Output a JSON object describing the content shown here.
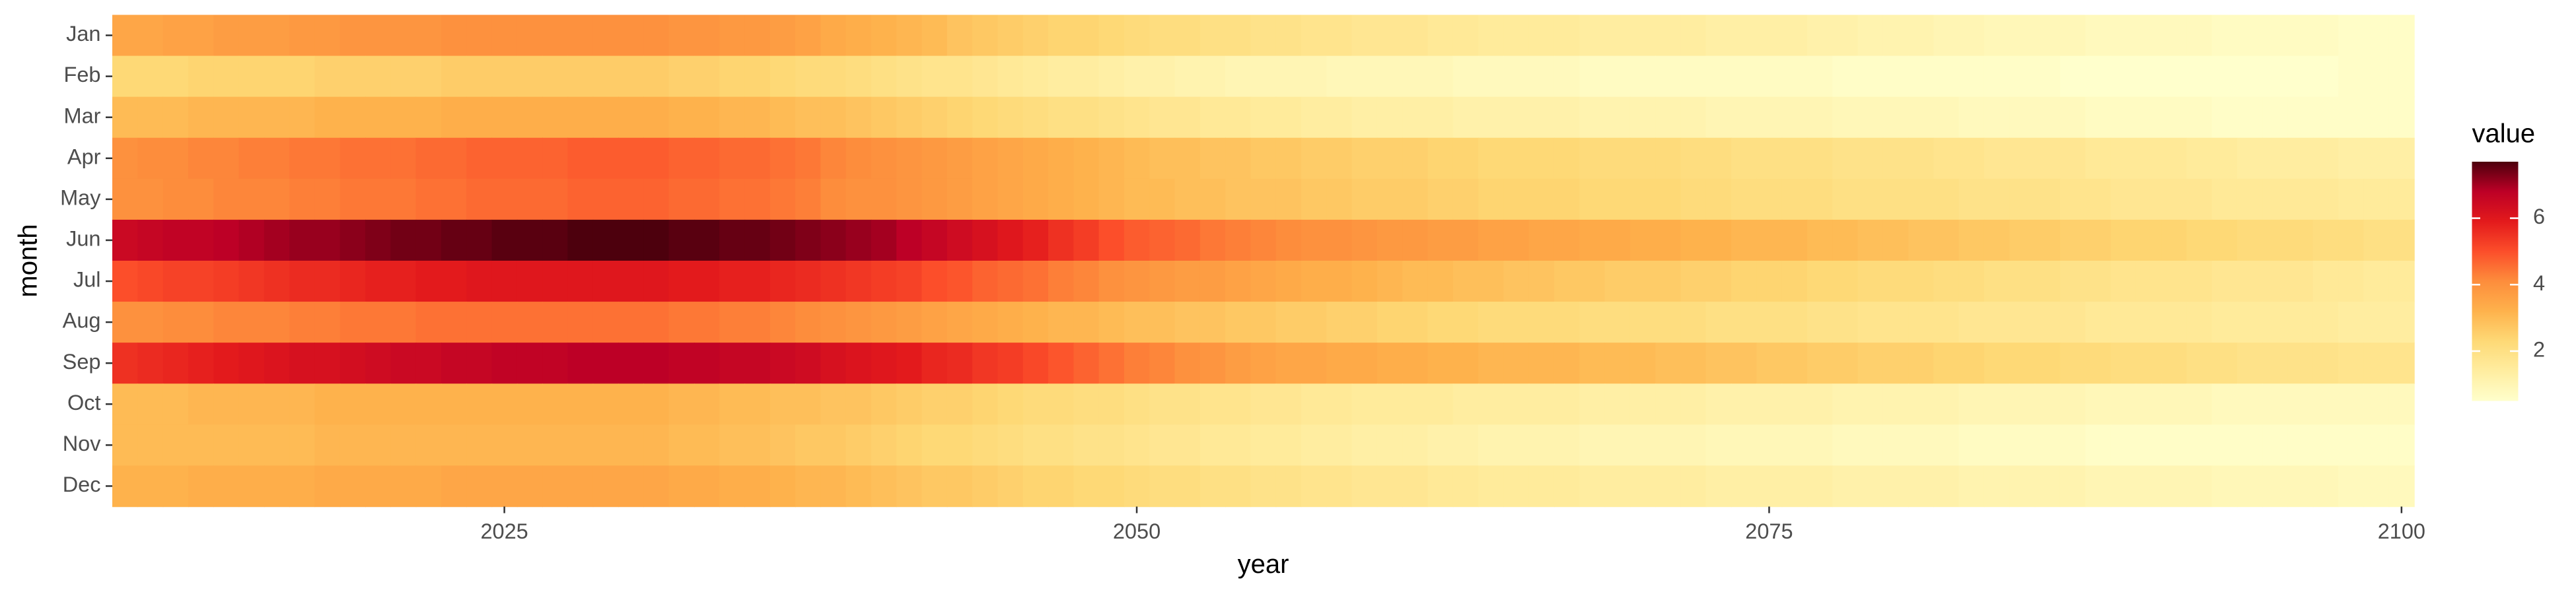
{
  "chart_data": {
    "type": "heatmap",
    "x_label": "year",
    "y_label": "month",
    "legend_title": "value",
    "y_categories": [
      "Jan",
      "Feb",
      "Mar",
      "Apr",
      "May",
      "Jun",
      "Jul",
      "Aug",
      "Sep",
      "Oct",
      "Nov",
      "Dec"
    ],
    "x": [
      2010,
      2011,
      2012,
      2013,
      2014,
      2015,
      2016,
      2017,
      2018,
      2019,
      2020,
      2021,
      2022,
      2023,
      2024,
      2025,
      2026,
      2027,
      2028,
      2029,
      2030,
      2031,
      2032,
      2033,
      2034,
      2035,
      2036,
      2037,
      2038,
      2039,
      2040,
      2041,
      2042,
      2043,
      2044,
      2045,
      2046,
      2047,
      2048,
      2049,
      2050,
      2051,
      2052,
      2053,
      2054,
      2055,
      2056,
      2057,
      2058,
      2059,
      2060,
      2061,
      2062,
      2063,
      2064,
      2065,
      2066,
      2067,
      2068,
      2069,
      2070,
      2071,
      2072,
      2073,
      2074,
      2075,
      2076,
      2077,
      2078,
      2079,
      2080,
      2081,
      2082,
      2083,
      2084,
      2085,
      2086,
      2087,
      2088,
      2089,
      2090,
      2091,
      2092,
      2093,
      2094,
      2095,
      2096,
      2097,
      2098,
      2099,
      2100
    ],
    "values": [
      [
        3.5,
        3.5,
        3.6,
        3.6,
        3.7,
        3.7,
        3.7,
        3.8,
        3.8,
        3.9,
        3.9,
        3.9,
        3.9,
        4.0,
        4.0,
        4.0,
        4.0,
        4.0,
        4.0,
        4.0,
        4.0,
        4.0,
        3.9,
        3.9,
        3.8,
        3.8,
        3.7,
        3.6,
        3.4,
        3.3,
        3.2,
        3.1,
        3.0,
        2.8,
        2.7,
        2.6,
        2.5,
        2.4,
        2.4,
        2.3,
        2.2,
        2.1,
        2.1,
        2.0,
        2.0,
        1.9,
        1.9,
        1.8,
        1.8,
        1.7,
        1.7,
        1.7,
        1.6,
        1.6,
        1.5,
        1.5,
        1.5,
        1.5,
        1.4,
        1.4,
        1.4,
        1.4,
        1.4,
        1.3,
        1.3,
        1.3,
        1.3,
        1.2,
        1.2,
        1.1,
        1.1,
        1.1,
        1.0,
        1.0,
        0.9,
        0.9,
        0.9,
        0.9,
        0.8,
        0.8,
        0.8,
        0.8,
        0.8,
        0.7,
        0.7,
        0.7,
        0.7,
        0.7,
        0.6,
        0.6,
        0.6
      ],
      [
        2.3,
        2.3,
        2.3,
        2.4,
        2.4,
        2.4,
        2.4,
        2.4,
        2.5,
        2.5,
        2.5,
        2.5,
        2.5,
        2.6,
        2.6,
        2.6,
        2.6,
        2.6,
        2.6,
        2.6,
        2.6,
        2.6,
        2.5,
        2.5,
        2.4,
        2.4,
        2.3,
        2.2,
        2.2,
        2.1,
        2.0,
        1.9,
        1.8,
        1.8,
        1.7,
        1.6,
        1.5,
        1.4,
        1.4,
        1.3,
        1.2,
        1.2,
        1.1,
        1.1,
        1.0,
        1.0,
        1.0,
        1.0,
        0.9,
        0.9,
        0.9,
        0.9,
        0.9,
        0.8,
        0.8,
        0.8,
        0.8,
        0.8,
        0.7,
        0.7,
        0.7,
        0.7,
        0.7,
        0.7,
        0.7,
        0.7,
        0.7,
        0.7,
        0.6,
        0.6,
        0.6,
        0.6,
        0.6,
        0.6,
        0.6,
        0.6,
        0.6,
        0.5,
        0.5,
        0.5,
        0.5,
        0.5,
        0.5,
        0.5,
        0.5,
        0.5,
        0.5,
        0.5,
        0.6,
        0.6,
        0.6
      ],
      [
        3.0,
        3.0,
        3.0,
        3.1,
        3.1,
        3.1,
        3.1,
        3.1,
        3.2,
        3.2,
        3.2,
        3.2,
        3.2,
        3.3,
        3.3,
        3.3,
        3.3,
        3.3,
        3.3,
        3.3,
        3.3,
        3.3,
        3.2,
        3.2,
        3.1,
        3.1,
        3.0,
        2.9,
        2.9,
        2.8,
        2.7,
        2.6,
        2.5,
        2.4,
        2.3,
        2.2,
        2.1,
        2.0,
        2.0,
        1.9,
        1.8,
        1.7,
        1.7,
        1.6,
        1.6,
        1.5,
        1.5,
        1.4,
        1.4,
        1.3,
        1.3,
        1.3,
        1.3,
        1.2,
        1.2,
        1.2,
        1.2,
        1.2,
        1.1,
        1.1,
        1.1,
        1.1,
        1.1,
        1.0,
        1.0,
        1.0,
        1.0,
        1.0,
        0.9,
        0.9,
        0.9,
        0.9,
        0.9,
        0.8,
        0.8,
        0.8,
        0.8,
        0.8,
        0.7,
        0.7,
        0.7,
        0.7,
        0.7,
        0.6,
        0.6,
        0.6,
        0.6,
        0.6,
        0.6,
        0.6,
        0.6
      ],
      [
        4.0,
        4.1,
        4.1,
        4.2,
        4.2,
        4.3,
        4.3,
        4.4,
        4.4,
        4.5,
        4.5,
        4.5,
        4.6,
        4.6,
        4.7,
        4.7,
        4.7,
        4.7,
        4.8,
        4.8,
        4.8,
        4.8,
        4.7,
        4.7,
        4.6,
        4.6,
        4.5,
        4.4,
        4.2,
        4.1,
        4.0,
        3.9,
        3.8,
        3.7,
        3.6,
        3.5,
        3.4,
        3.3,
        3.2,
        3.1,
        3.0,
        2.9,
        2.9,
        2.8,
        2.8,
        2.7,
        2.7,
        2.6,
        2.6,
        2.5,
        2.5,
        2.5,
        2.4,
        2.4,
        2.3,
        2.3,
        2.3,
        2.3,
        2.2,
        2.2,
        2.2,
        2.2,
        2.1,
        2.1,
        2.0,
        2.0,
        2.0,
        2.0,
        1.9,
        1.9,
        1.9,
        1.9,
        1.8,
        1.8,
        1.7,
        1.7,
        1.7,
        1.7,
        1.6,
        1.6,
        1.6,
        1.6,
        1.5,
        1.5,
        1.4,
        1.4,
        1.4,
        1.4,
        1.3,
        1.3,
        1.3
      ],
      [
        4.0,
        4.0,
        4.1,
        4.1,
        4.2,
        4.2,
        4.2,
        4.3,
        4.3,
        4.4,
        4.4,
        4.4,
        4.5,
        4.5,
        4.6,
        4.6,
        4.6,
        4.6,
        4.7,
        4.7,
        4.7,
        4.7,
        4.6,
        4.6,
        4.5,
        4.5,
        4.4,
        4.3,
        4.1,
        4.0,
        4.0,
        3.9,
        3.8,
        3.7,
        3.6,
        3.5,
        3.4,
        3.3,
        3.2,
        3.1,
        3.0,
        3.0,
        2.9,
        2.9,
        2.8,
        2.8,
        2.8,
        2.7,
        2.7,
        2.6,
        2.6,
        2.6,
        2.5,
        2.5,
        2.4,
        2.4,
        2.4,
        2.4,
        2.3,
        2.3,
        2.3,
        2.3,
        2.2,
        2.2,
        2.1,
        2.1,
        2.1,
        2.1,
        2.0,
        2.0,
        2.0,
        2.0,
        2.0,
        1.9,
        1.9,
        1.9,
        1.9,
        1.8,
        1.8,
        1.7,
        1.7,
        1.7,
        1.7,
        1.6,
        1.6,
        1.6,
        1.6,
        1.6,
        1.5,
        1.5,
        1.5
      ],
      [
        6.5,
        6.6,
        6.7,
        6.7,
        6.8,
        6.9,
        7.0,
        7.1,
        7.1,
        7.2,
        7.3,
        7.4,
        7.4,
        7.5,
        7.5,
        7.6,
        7.6,
        7.6,
        7.7,
        7.7,
        7.7,
        7.7,
        7.6,
        7.6,
        7.5,
        7.5,
        7.4,
        7.3,
        7.2,
        7.1,
        7.0,
        6.8,
        6.6,
        6.4,
        6.2,
        6.0,
        5.8,
        5.5,
        5.3,
        5.0,
        4.8,
        4.7,
        4.6,
        4.4,
        4.3,
        4.2,
        4.1,
        4.0,
        4.0,
        3.9,
        3.8,
        3.8,
        3.7,
        3.7,
        3.6,
        3.6,
        3.5,
        3.5,
        3.4,
        3.4,
        3.3,
        3.3,
        3.2,
        3.2,
        3.1,
        3.1,
        3.1,
        3.0,
        3.0,
        2.9,
        2.9,
        2.8,
        2.8,
        2.7,
        2.7,
        2.6,
        2.6,
        2.5,
        2.5,
        2.4,
        2.4,
        2.4,
        2.3,
        2.3,
        2.2,
        2.2,
        2.2,
        2.1,
        2.1,
        2.0,
        2.0
      ],
      [
        5.0,
        5.1,
        5.2,
        5.2,
        5.3,
        5.4,
        5.5,
        5.6,
        5.6,
        5.7,
        5.8,
        5.8,
        5.9,
        5.9,
        6.0,
        6.0,
        6.0,
        6.0,
        6.0,
        6.0,
        6.0,
        6.0,
        5.9,
        5.9,
        5.8,
        5.8,
        5.7,
        5.6,
        5.5,
        5.4,
        5.3,
        5.2,
        5.0,
        4.9,
        4.7,
        4.6,
        4.5,
        4.3,
        4.2,
        4.0,
        3.9,
        3.8,
        3.7,
        3.7,
        3.6,
        3.5,
        3.4,
        3.3,
        3.3,
        3.2,
        3.1,
        3.0,
        3.0,
        2.9,
        2.9,
        2.8,
        2.8,
        2.7,
        2.7,
        2.6,
        2.6,
        2.6,
        2.5,
        2.5,
        2.4,
        2.4,
        2.4,
        2.3,
        2.3,
        2.2,
        2.2,
        2.2,
        2.1,
        2.1,
        2.0,
        2.0,
        2.0,
        1.9,
        1.9,
        1.8,
        1.8,
        1.8,
        1.8,
        1.7,
        1.7,
        1.7,
        1.7,
        1.6,
        1.6,
        1.5,
        1.5
      ],
      [
        4.0,
        4.0,
        4.1,
        4.1,
        4.2,
        4.2,
        4.2,
        4.3,
        4.3,
        4.4,
        4.4,
        4.4,
        4.5,
        4.5,
        4.5,
        4.5,
        4.5,
        4.5,
        4.5,
        4.5,
        4.5,
        4.5,
        4.4,
        4.4,
        4.3,
        4.3,
        4.2,
        4.1,
        4.0,
        3.9,
        3.8,
        3.7,
        3.6,
        3.5,
        3.4,
        3.3,
        3.2,
        3.1,
        3.1,
        3.0,
        2.9,
        2.9,
        2.8,
        2.8,
        2.7,
        2.7,
        2.6,
        2.6,
        2.5,
        2.5,
        2.4,
        2.4,
        2.3,
        2.3,
        2.2,
        2.2,
        2.2,
        2.2,
        2.1,
        2.1,
        2.1,
        2.1,
        2.1,
        2.0,
        2.0,
        2.0,
        2.0,
        1.9,
        1.9,
        1.8,
        1.8,
        1.8,
        1.8,
        1.7,
        1.7,
        1.7,
        1.7,
        1.7,
        1.6,
        1.6,
        1.6,
        1.6,
        1.6,
        1.5,
        1.5,
        1.5,
        1.5,
        1.5,
        1.4,
        1.4,
        1.4
      ],
      [
        5.5,
        5.6,
        5.7,
        5.8,
        5.9,
        6.0,
        6.1,
        6.2,
        6.2,
        6.3,
        6.4,
        6.5,
        6.5,
        6.6,
        6.6,
        6.7,
        6.7,
        6.7,
        6.8,
        6.8,
        6.8,
        6.8,
        6.7,
        6.7,
        6.6,
        6.6,
        6.5,
        6.4,
        6.2,
        6.1,
        6.0,
        5.9,
        5.7,
        5.6,
        5.4,
        5.3,
        5.1,
        4.9,
        4.7,
        4.5,
        4.3,
        4.2,
        4.0,
        3.9,
        3.7,
        3.6,
        3.5,
        3.5,
        3.4,
        3.4,
        3.3,
        3.3,
        3.2,
        3.2,
        3.1,
        3.1,
        3.1,
        3.1,
        3.0,
        3.0,
        3.0,
        2.9,
        2.9,
        2.8,
        2.8,
        2.7,
        2.7,
        2.6,
        2.6,
        2.5,
        2.5,
        2.5,
        2.4,
        2.4,
        2.3,
        2.3,
        2.3,
        2.2,
        2.2,
        2.1,
        2.1,
        2.1,
        2.0,
        2.0,
        1.9,
        1.9,
        1.9,
        1.9,
        1.8,
        1.8,
        1.8
      ],
      [
        3.0,
        3.0,
        3.0,
        3.1,
        3.1,
        3.1,
        3.1,
        3.1,
        3.2,
        3.2,
        3.2,
        3.2,
        3.2,
        3.2,
        3.2,
        3.2,
        3.2,
        3.2,
        3.2,
        3.2,
        3.2,
        3.2,
        3.1,
        3.1,
        3.0,
        3.0,
        2.9,
        2.9,
        2.8,
        2.8,
        2.7,
        2.6,
        2.5,
        2.5,
        2.4,
        2.3,
        2.2,
        2.2,
        2.1,
        2.1,
        2.0,
        1.9,
        1.9,
        1.8,
        1.8,
        1.7,
        1.7,
        1.6,
        1.6,
        1.5,
        1.5,
        1.5,
        1.5,
        1.4,
        1.4,
        1.4,
        1.4,
        1.4,
        1.3,
        1.3,
        1.3,
        1.3,
        1.3,
        1.2,
        1.2,
        1.2,
        1.2,
        1.2,
        1.1,
        1.1,
        1.1,
        1.1,
        1.1,
        1.0,
        1.0,
        1.0,
        1.0,
        1.0,
        0.9,
        0.9,
        0.9,
        0.9,
        0.9,
        0.8,
        0.8,
        0.8,
        0.8,
        0.8,
        0.8,
        0.8,
        0.8
      ],
      [
        3.0,
        3.0,
        3.0,
        3.0,
        3.0,
        3.0,
        3.0,
        3.0,
        3.1,
        3.1,
        3.1,
        3.1,
        3.1,
        3.1,
        3.1,
        3.1,
        3.1,
        3.1,
        3.1,
        3.1,
        3.1,
        3.1,
        3.0,
        3.0,
        2.9,
        2.9,
        2.8,
        2.7,
        2.7,
        2.6,
        2.5,
        2.4,
        2.3,
        2.3,
        2.2,
        2.1,
        2.0,
        2.0,
        1.9,
        1.9,
        1.8,
        1.7,
        1.7,
        1.6,
        1.6,
        1.5,
        1.5,
        1.4,
        1.4,
        1.3,
        1.3,
        1.3,
        1.2,
        1.2,
        1.1,
        1.1,
        1.1,
        1.1,
        1.0,
        1.0,
        1.0,
        1.0,
        1.0,
        0.9,
        0.9,
        0.9,
        0.9,
        0.9,
        0.8,
        0.8,
        0.8,
        0.8,
        0.8,
        0.7,
        0.7,
        0.7,
        0.7,
        0.7,
        0.6,
        0.6,
        0.6,
        0.6,
        0.6,
        0.6,
        0.6,
        0.6,
        0.6,
        0.6,
        0.6,
        0.6,
        0.6
      ],
      [
        3.2,
        3.2,
        3.2,
        3.3,
        3.3,
        3.3,
        3.3,
        3.3,
        3.4,
        3.4,
        3.4,
        3.4,
        3.4,
        3.5,
        3.5,
        3.5,
        3.5,
        3.5,
        3.5,
        3.5,
        3.5,
        3.5,
        3.4,
        3.4,
        3.3,
        3.3,
        3.2,
        3.1,
        3.1,
        3.0,
        2.9,
        2.8,
        2.7,
        2.7,
        2.6,
        2.5,
        2.4,
        2.4,
        2.3,
        2.3,
        2.2,
        2.1,
        2.1,
        2.0,
        2.0,
        1.9,
        1.9,
        1.8,
        1.8,
        1.7,
        1.7,
        1.7,
        1.6,
        1.6,
        1.5,
        1.5,
        1.5,
        1.5,
        1.4,
        1.4,
        1.4,
        1.4,
        1.4,
        1.3,
        1.3,
        1.3,
        1.3,
        1.3,
        1.2,
        1.2,
        1.2,
        1.2,
        1.2,
        1.1,
        1.1,
        1.1,
        1.1,
        1.1,
        1.0,
        1.0,
        1.0,
        1.0,
        1.0,
        0.9,
        0.9,
        0.9,
        0.9,
        0.9,
        0.8,
        0.8,
        0.8
      ]
    ],
    "xlim": [
      2009.5,
      2100.5
    ],
    "xticks": [
      2025,
      2050,
      2075,
      2100
    ],
    "color_lim": [
      0.5,
      7.7
    ],
    "color_ticks": [
      2,
      4,
      6
    ],
    "colorscale": [
      "#ffffcc",
      "#ffeda0",
      "#fed976",
      "#feb24c",
      "#fd8d3c",
      "#fc4e2a",
      "#e31a1c",
      "#bd0026",
      "#4d000d"
    ]
  }
}
